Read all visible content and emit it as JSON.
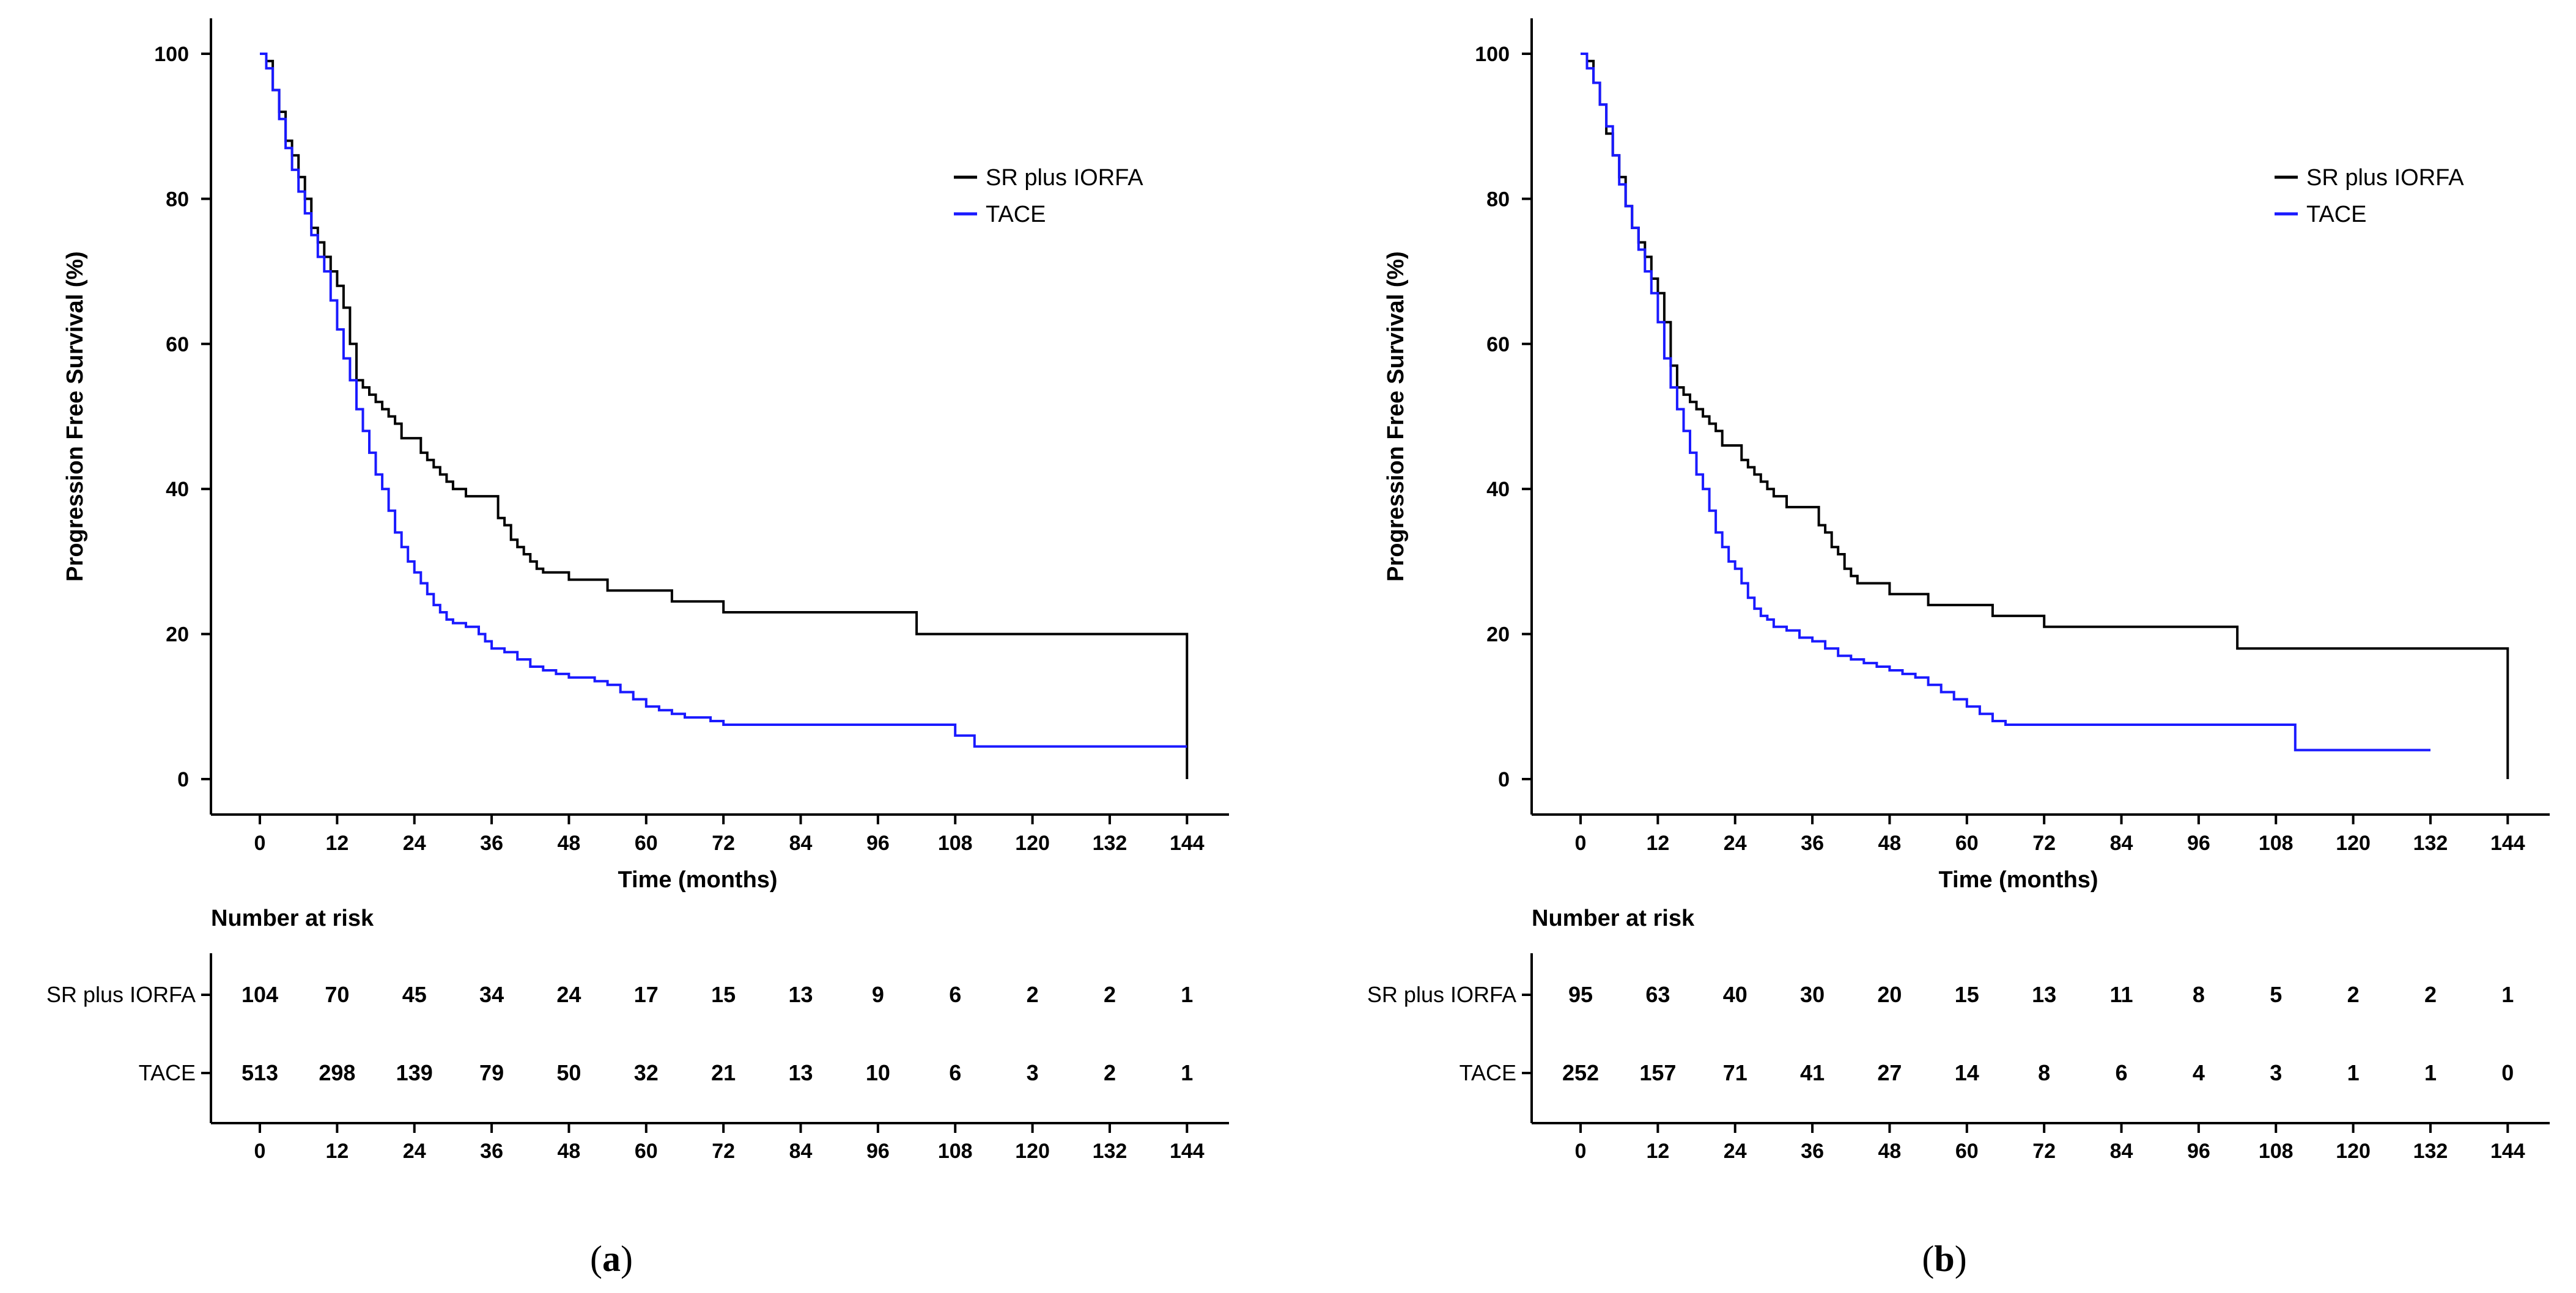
{
  "chart_data": [
    {
      "type": "line",
      "panel_label": "a",
      "ylabel": "Progression Free Survival (%)",
      "xlabel": "Time (months)",
      "ylim": [
        0,
        100
      ],
      "xlim": [
        0,
        150
      ],
      "yticks": [
        0,
        20,
        40,
        60,
        80,
        100
      ],
      "xticks": [
        0,
        12,
        24,
        36,
        48,
        60,
        72,
        84,
        96,
        108,
        120,
        132,
        144
      ],
      "legend_position": "top-right",
      "grid": false,
      "series": [
        {
          "name": "SR plus IORFA",
          "color": "#000000",
          "points": [
            [
              0,
              100
            ],
            [
              1,
              99
            ],
            [
              2,
              95
            ],
            [
              3,
              92
            ],
            [
              4,
              88
            ],
            [
              5,
              86
            ],
            [
              6,
              83
            ],
            [
              7,
              80
            ],
            [
              8,
              76
            ],
            [
              9,
              74
            ],
            [
              10,
              72
            ],
            [
              11,
              70
            ],
            [
              12,
              68
            ],
            [
              13,
              65
            ],
            [
              14,
              60
            ],
            [
              15,
              55
            ],
            [
              16,
              54
            ],
            [
              17,
              53
            ],
            [
              18,
              52
            ],
            [
              19,
              51
            ],
            [
              20,
              50
            ],
            [
              21,
              49
            ],
            [
              22,
              47
            ],
            [
              24,
              47
            ],
            [
              25,
              45
            ],
            [
              26,
              44
            ],
            [
              27,
              43
            ],
            [
              28,
              42
            ],
            [
              29,
              41
            ],
            [
              30,
              40
            ],
            [
              32,
              39
            ],
            [
              36,
              39
            ],
            [
              37,
              36
            ],
            [
              38,
              35
            ],
            [
              39,
              33
            ],
            [
              40,
              32
            ],
            [
              41,
              31
            ],
            [
              42,
              30
            ],
            [
              43,
              29
            ],
            [
              44,
              28.5
            ],
            [
              48,
              27.5
            ],
            [
              54,
              26
            ],
            [
              60,
              26
            ],
            [
              64,
              24.5
            ],
            [
              70,
              24.5
            ],
            [
              72,
              23
            ],
            [
              102,
              23
            ],
            [
              102,
              20
            ],
            [
              143,
              20
            ],
            [
              144,
              0
            ]
          ]
        },
        {
          "name": "TACE",
          "color": "#1a1aff",
          "points": [
            [
              0,
              100
            ],
            [
              1,
              98
            ],
            [
              2,
              95
            ],
            [
              3,
              91
            ],
            [
              4,
              87
            ],
            [
              5,
              84
            ],
            [
              6,
              81
            ],
            [
              7,
              78
            ],
            [
              8,
              75
            ],
            [
              9,
              72
            ],
            [
              10,
              70
            ],
            [
              11,
              66
            ],
            [
              12,
              62
            ],
            [
              13,
              58
            ],
            [
              14,
              55
            ],
            [
              15,
              51
            ],
            [
              16,
              48
            ],
            [
              17,
              45
            ],
            [
              18,
              42
            ],
            [
              19,
              40
            ],
            [
              20,
              37
            ],
            [
              21,
              34
            ],
            [
              22,
              32
            ],
            [
              23,
              30
            ],
            [
              24,
              28.5
            ],
            [
              25,
              27
            ],
            [
              26,
              25.5
            ],
            [
              27,
              24
            ],
            [
              28,
              23
            ],
            [
              29,
              22
            ],
            [
              30,
              21.5
            ],
            [
              32,
              21
            ],
            [
              34,
              20
            ],
            [
              35,
              19
            ],
            [
              36,
              18
            ],
            [
              38,
              17.5
            ],
            [
              40,
              16.5
            ],
            [
              42,
              15.5
            ],
            [
              44,
              15
            ],
            [
              46,
              14.5
            ],
            [
              48,
              14
            ],
            [
              52,
              13.5
            ],
            [
              54,
              13
            ],
            [
              56,
              12
            ],
            [
              58,
              11
            ],
            [
              60,
              10
            ],
            [
              62,
              9.5
            ],
            [
              64,
              9
            ],
            [
              66,
              8.5
            ],
            [
              70,
              8
            ],
            [
              72,
              7.5
            ],
            [
              106,
              7.5
            ],
            [
              108,
              6
            ],
            [
              110,
              6
            ],
            [
              111,
              4.5
            ],
            [
              144,
              4.5
            ]
          ]
        }
      ],
      "risk_table": {
        "title": "Number at risk",
        "rows": [
          {
            "label": "SR plus IORFA",
            "values": [
              104,
              70,
              45,
              34,
              24,
              17,
              15,
              13,
              9,
              6,
              2,
              2,
              1
            ]
          },
          {
            "label": "TACE",
            "values": [
              513,
              298,
              139,
              79,
              50,
              32,
              21,
              13,
              10,
              6,
              3,
              2,
              1
            ]
          }
        ]
      }
    },
    {
      "type": "line",
      "panel_label": "b",
      "ylabel": "Progression Free Survival (%)",
      "xlabel": "Time (months)",
      "ylim": [
        0,
        100
      ],
      "xlim": [
        0,
        150
      ],
      "yticks": [
        0,
        20,
        40,
        60,
        80,
        100
      ],
      "xticks": [
        0,
        12,
        24,
        36,
        48,
        60,
        72,
        84,
        96,
        108,
        120,
        132,
        144
      ],
      "legend_position": "top-right",
      "grid": false,
      "series": [
        {
          "name": "SR plus IORFA",
          "color": "#000000",
          "points": [
            [
              0,
              100
            ],
            [
              1,
              99
            ],
            [
              2,
              96
            ],
            [
              3,
              93
            ],
            [
              4,
              89
            ],
            [
              5,
              86
            ],
            [
              6,
              83
            ],
            [
              7,
              79
            ],
            [
              8,
              76
            ],
            [
              9,
              74
            ],
            [
              10,
              72
            ],
            [
              11,
              69
            ],
            [
              12,
              67
            ],
            [
              13,
              63
            ],
            [
              14,
              57
            ],
            [
              15,
              54
            ],
            [
              16,
              53
            ],
            [
              17,
              52
            ],
            [
              18,
              51
            ],
            [
              19,
              50
            ],
            [
              20,
              49
            ],
            [
              21,
              48
            ],
            [
              22,
              46
            ],
            [
              24,
              46
            ],
            [
              25,
              44
            ],
            [
              26,
              43
            ],
            [
              27,
              42
            ],
            [
              28,
              41
            ],
            [
              29,
              40
            ],
            [
              30,
              39
            ],
            [
              32,
              37.5
            ],
            [
              36,
              37.5
            ],
            [
              37,
              35
            ],
            [
              38,
              34
            ],
            [
              39,
              32
            ],
            [
              40,
              31
            ],
            [
              41,
              29
            ],
            [
              42,
              28
            ],
            [
              43,
              27
            ],
            [
              48,
              25.5
            ],
            [
              54,
              24
            ],
            [
              60,
              24
            ],
            [
              64,
              22.5
            ],
            [
              70,
              22.5
            ],
            [
              72,
              21
            ],
            [
              102,
              21
            ],
            [
              102,
              18
            ],
            [
              143,
              18
            ],
            [
              144,
              0
            ]
          ]
        },
        {
          "name": "TACE",
          "color": "#1a1aff",
          "points": [
            [
              0,
              100
            ],
            [
              1,
              98
            ],
            [
              2,
              96
            ],
            [
              3,
              93
            ],
            [
              4,
              90
            ],
            [
              5,
              86
            ],
            [
              6,
              82
            ],
            [
              7,
              79
            ],
            [
              8,
              76
            ],
            [
              9,
              73
            ],
            [
              10,
              70
            ],
            [
              11,
              67
            ],
            [
              12,
              63
            ],
            [
              13,
              58
            ],
            [
              14,
              54
            ],
            [
              15,
              51
            ],
            [
              16,
              48
            ],
            [
              17,
              45
            ],
            [
              18,
              42
            ],
            [
              19,
              40
            ],
            [
              20,
              37
            ],
            [
              21,
              34
            ],
            [
              22,
              32
            ],
            [
              23,
              30
            ],
            [
              24,
              29
            ],
            [
              25,
              27
            ],
            [
              26,
              25
            ],
            [
              27,
              23.5
            ],
            [
              28,
              22.5
            ],
            [
              29,
              22
            ],
            [
              30,
              21
            ],
            [
              32,
              20.5
            ],
            [
              34,
              19.5
            ],
            [
              36,
              19
            ],
            [
              38,
              18
            ],
            [
              40,
              17
            ],
            [
              42,
              16.5
            ],
            [
              44,
              16
            ],
            [
              46,
              15.5
            ],
            [
              48,
              15
            ],
            [
              50,
              14.5
            ],
            [
              52,
              14
            ],
            [
              54,
              13
            ],
            [
              56,
              12
            ],
            [
              58,
              11
            ],
            [
              60,
              10
            ],
            [
              62,
              9
            ],
            [
              64,
              8
            ],
            [
              66,
              7.5
            ],
            [
              72,
              7.5
            ],
            [
              108,
              7.5
            ],
            [
              111,
              4
            ],
            [
              132,
              4
            ]
          ]
        }
      ],
      "risk_table": {
        "title": "Number at risk",
        "rows": [
          {
            "label": "SR plus IORFA",
            "values": [
              95,
              63,
              40,
              30,
              20,
              15,
              13,
              11,
              8,
              5,
              2,
              2,
              1
            ]
          },
          {
            "label": "TACE",
            "values": [
              252,
              157,
              71,
              41,
              27,
              14,
              8,
              6,
              4,
              3,
              1,
              1,
              0
            ]
          }
        ]
      }
    }
  ]
}
